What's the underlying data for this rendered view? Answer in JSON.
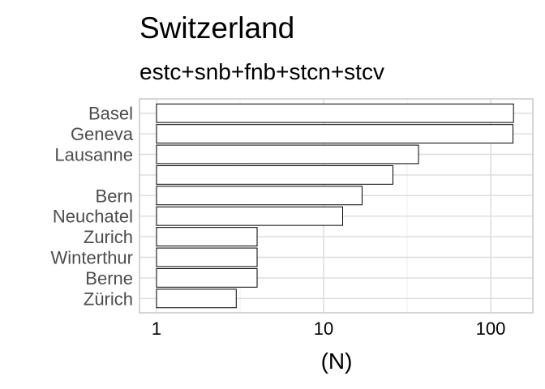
{
  "chart_data": {
    "type": "bar",
    "orientation": "horizontal",
    "title": "Switzerland",
    "subtitle": "estc+snb+fnb+stcn+stcv",
    "xlabel": "(N)",
    "ylabel": "",
    "x_scale": "log10",
    "xlim": [
      0.9,
      160
    ],
    "x_ticks": [
      "1",
      "10",
      "100"
    ],
    "grid": true,
    "categories": [
      "Basel",
      "Geneva",
      "Lausanne",
      "",
      "Bern",
      "Neuchatel",
      "Zurich",
      "Winterthur",
      "Berne",
      "Zürich"
    ],
    "values": [
      137,
      136,
      37,
      26,
      17,
      13,
      4,
      4,
      4,
      3
    ]
  }
}
